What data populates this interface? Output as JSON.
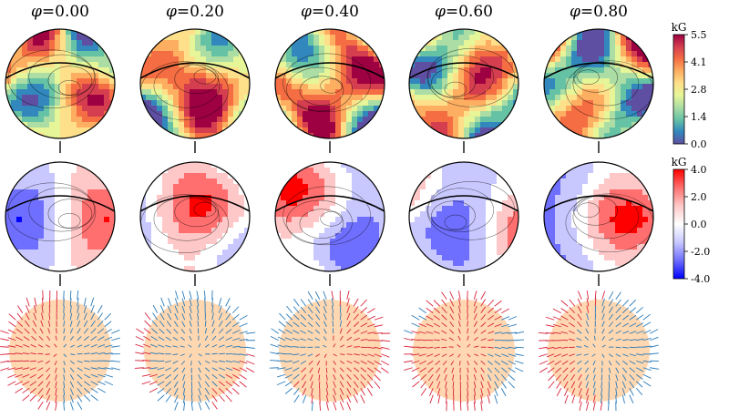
{
  "phases": [
    "0.00",
    "0.20",
    "0.40",
    "0.60",
    "0.80"
  ],
  "phase_symbol": "φ",
  "rows": [
    {
      "name": "field-modulus",
      "palette": "spectral"
    },
    {
      "name": "radial-field",
      "palette": "diverging"
    },
    {
      "name": "field-vectors",
      "palette": "vectors"
    }
  ],
  "colorbars": [
    {
      "name": "modulus-colorbar",
      "unit": "kG",
      "ticks": [
        "5.5",
        "4.1",
        "2.8",
        "1.4",
        "0.0"
      ],
      "min": 0.0,
      "max": 5.5
    },
    {
      "name": "radial-colorbar",
      "unit": "kG",
      "ticks": [
        "4.0",
        "2.0",
        "0.0",
        "-2.0",
        "-4.0"
      ],
      "min": -4.0,
      "max": 4.0
    }
  ],
  "colors": {
    "spectral": [
      "#5e4fa2",
      "#3288bd",
      "#66c2a5",
      "#abdda4",
      "#e6f598",
      "#fee08b",
      "#fdae61",
      "#f46d43",
      "#d53e4f",
      "#9e0142"
    ],
    "diverging": [
      "#0000ff",
      "#6f6fff",
      "#c8c8ff",
      "#ffffff",
      "#ffc8c8",
      "#ff6f6f",
      "#ff0000"
    ],
    "vector_out": "#2b7bb9",
    "vector_in": "#d7263d",
    "sphere_fill": "#ffd7b0",
    "outline": "#000000"
  }
}
